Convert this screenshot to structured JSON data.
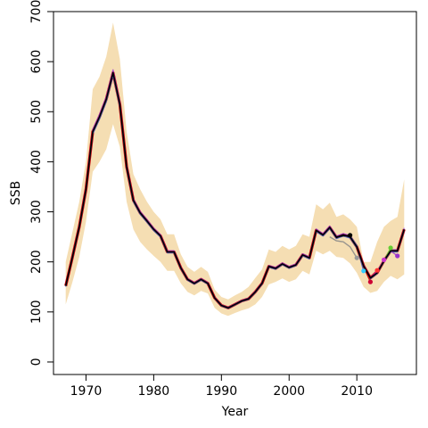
{
  "chart_data": {
    "type": "line",
    "xlabel": "Year",
    "ylabel": "SSB",
    "xlim": [
      1965.2,
      2018.8
    ],
    "ylim": [
      -25,
      700
    ],
    "x_ticks": [
      1970,
      1980,
      1990,
      2000,
      2010
    ],
    "y_ticks": [
      0,
      100,
      200,
      300,
      400,
      500,
      600,
      700
    ],
    "grid": false,
    "colors": {
      "band": "#F5DEB3",
      "main_line": "#000000",
      "retro_red": "#CC0000",
      "retro_blue": "#3366CC",
      "retro_purple": "#9933CC",
      "retro_grey": "#888888"
    },
    "confidence_band": {
      "x": [
        1967,
        1968,
        1969,
        1970,
        1971,
        1972,
        1973,
        1974,
        1975,
        1976,
        1977,
        1978,
        1979,
        1980,
        1981,
        1982,
        1983,
        1984,
        1985,
        1986,
        1987,
        1988,
        1989,
        1990,
        1991,
        1992,
        1993,
        1994,
        1995,
        1996,
        1997,
        1998,
        1999,
        2000,
        2001,
        2002,
        2003,
        2004,
        2005,
        2006,
        2007,
        2008,
        2009,
        2010,
        2011,
        2012,
        2013,
        2014,
        2015,
        2016,
        2017
      ],
      "lower": [
        115,
        160,
        210,
        280,
        380,
        400,
        425,
        475,
        430,
        320,
        265,
        240,
        225,
        212,
        200,
        182,
        182,
        157,
        140,
        133,
        142,
        137,
        108,
        97,
        92,
        98,
        103,
        107,
        115,
        130,
        155,
        160,
        167,
        160,
        165,
        182,
        175,
        222,
        215,
        222,
        210,
        208,
        197,
        178,
        150,
        138,
        142,
        160,
        172,
        165,
        175
      ],
      "upper": [
        200,
        260,
        320,
        400,
        545,
        570,
        610,
        678,
        605,
        460,
        375,
        345,
        320,
        300,
        285,
        255,
        255,
        215,
        190,
        180,
        190,
        180,
        145,
        130,
        125,
        133,
        140,
        150,
        168,
        185,
        225,
        220,
        232,
        225,
        232,
        255,
        250,
        315,
        305,
        318,
        290,
        295,
        285,
        270,
        200,
        200,
        240,
        270,
        282,
        290,
        365
      ]
    },
    "series": [
      {
        "color": "#000000",
        "x": [
          1967,
          1968,
          1969,
          1970,
          1971,
          1972,
          1973,
          1974,
          1975,
          1976,
          1977,
          1978,
          1979,
          1980,
          1981,
          1982,
          1983,
          1984,
          1985,
          1986,
          1987,
          1988,
          1989,
          1990,
          1991,
          1992,
          1993,
          1994,
          1995,
          1996,
          1997,
          1998,
          1999,
          2000,
          2001,
          2002,
          2003,
          2004,
          2005,
          2006,
          2007,
          2008,
          2009,
          2010,
          2011,
          2012,
          2013,
          2014,
          2015,
          2016,
          2017
        ],
        "values": [
          152,
          210,
          270,
          345,
          460,
          490,
          525,
          578,
          515,
          390,
          323,
          298,
          282,
          265,
          252,
          220,
          220,
          188,
          165,
          157,
          165,
          157,
          128,
          113,
          108,
          115,
          122,
          126,
          140,
          157,
          191,
          187,
          196,
          189,
          194,
          214,
          208,
          263,
          254,
          269,
          249,
          254,
          250,
          230,
          192,
          168,
          178,
          202,
          222,
          222,
          265
        ]
      }
    ],
    "retrospective_tails": [
      {
        "color": "#888888",
        "x": [
          2006,
          2007,
          2008,
          2009,
          2010
        ],
        "values": [
          250,
          242,
          240,
          230,
          208
        ]
      },
      {
        "color": "#000000",
        "x": [
          2007,
          2008,
          2009
        ],
        "values": [
          250,
          252,
          253
        ]
      },
      {
        "color": "#3366CC",
        "x": [
          2009,
          2010,
          2011
        ],
        "values": [
          252,
          232,
          182
        ]
      },
      {
        "color": "#CC0000",
        "x": [
          2010,
          2011,
          2012
        ],
        "values": [
          230,
          190,
          160
        ]
      },
      {
        "color": "#CC0033",
        "x": [
          2011,
          2012,
          2013
        ],
        "values": [
          192,
          170,
          183
        ]
      },
      {
        "color": "#CC33CC",
        "x": [
          2012,
          2013,
          2014
        ],
        "values": [
          168,
          180,
          204
        ]
      },
      {
        "color": "#66CC33",
        "x": [
          2013,
          2014,
          2015
        ],
        "values": [
          178,
          202,
          228
        ]
      },
      {
        "color": "#9933CC",
        "x": [
          2014,
          2015,
          2016
        ],
        "values": [
          202,
          222,
          212
        ]
      }
    ],
    "end_points": [
      {
        "x": 2009,
        "y": 253,
        "color": "#000000"
      },
      {
        "x": 2010,
        "y": 208,
        "color": "#999999"
      },
      {
        "x": 2011,
        "y": 182,
        "color": "#33CCFF"
      },
      {
        "x": 2012,
        "y": 160,
        "color": "#CC0033"
      },
      {
        "x": 2013,
        "y": 183,
        "color": "#FF3333"
      },
      {
        "x": 2014,
        "y": 204,
        "color": "#CC33CC"
      },
      {
        "x": 2015,
        "y": 228,
        "color": "#66CC33"
      },
      {
        "x": 2016,
        "y": 212,
        "color": "#9933CC"
      }
    ]
  }
}
